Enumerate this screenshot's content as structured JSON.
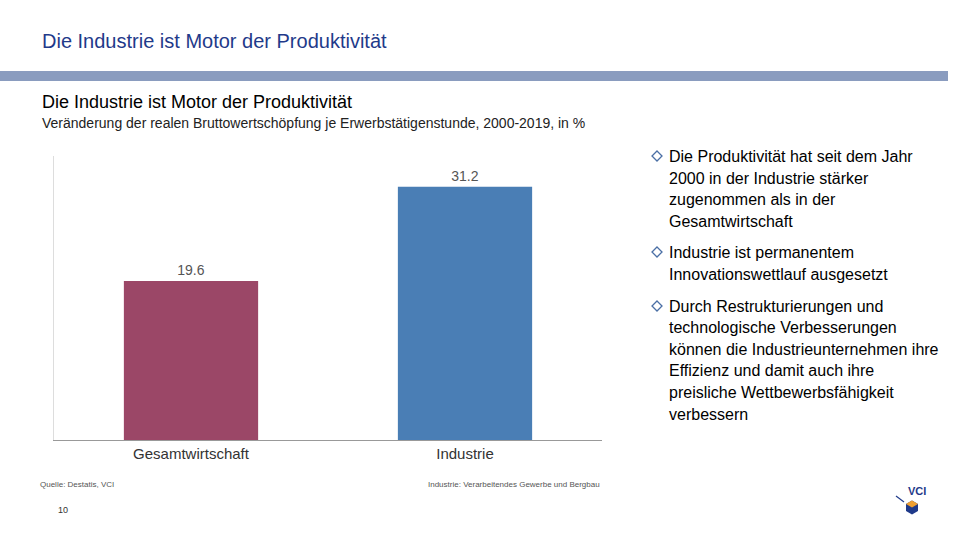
{
  "slide": {
    "header": "Die Industrie ist Motor der Produktivität",
    "bullets": [
      "Die Produktivität hat seit dem Jahr 2000 in der Industrie stärker zugenommen als in der Gesamtwirtschaft",
      "Industrie ist permanentem Innovationswettlauf ausgesetzt",
      "Durch Restrukturierungen und technologische Verbesserungen können die Industrieunternehmen ihre Effizienz und damit auch ihre preisliche Wettbewerbsfähigkeit verbessern"
    ],
    "source": "Quelle: Destatis, VCI",
    "note": "Industrie: Verarbeitendes Gewerbe und Bergbau",
    "page": 10,
    "logo": "VCI"
  },
  "chart_data": {
    "type": "bar",
    "title": "Die Industrie ist Motor der Produktivität",
    "subtitle": "Veränderung der realen Bruttowertschöpfung je Erwerbstätigenstunde, 2000-2019, in %",
    "categories": [
      "Gesamtwirtschaft",
      "Industrie"
    ],
    "values": [
      19.6,
      31.2
    ],
    "colors": [
      "#9b4767",
      "#4a7eb5"
    ],
    "ylim": [
      0,
      35
    ],
    "yticks": [],
    "grid": false,
    "data_labels": true,
    "tick_labels": "x"
  }
}
